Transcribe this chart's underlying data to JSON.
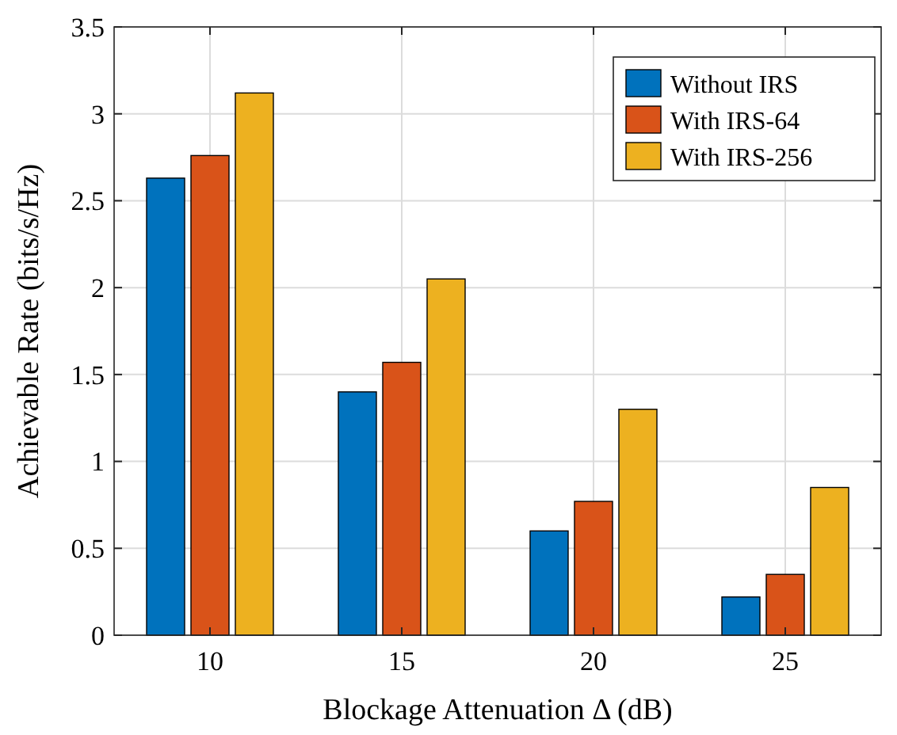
{
  "chart_data": {
    "type": "bar",
    "xlabel": "Blockage Attenuation Δ (dB)",
    "ylabel": "Achievable Rate (bits/s/Hz)",
    "categories": [
      "10",
      "15",
      "20",
      "25"
    ],
    "series": [
      {
        "name": "Without IRS",
        "color": "#0072bd",
        "values": [
          2.63,
          1.4,
          0.6,
          0.22
        ]
      },
      {
        "name": "With IRS-64",
        "color": "#d95319",
        "values": [
          2.76,
          1.57,
          0.77,
          0.35
        ]
      },
      {
        "name": "With IRS-256",
        "color": "#edb120",
        "values": [
          3.12,
          2.05,
          1.3,
          0.85
        ]
      }
    ],
    "ylim": [
      0,
      3.5
    ],
    "yticks": [
      0,
      0.5,
      1,
      1.5,
      2,
      2.5,
      3,
      3.5
    ],
    "grid": true,
    "legend": "top right"
  }
}
